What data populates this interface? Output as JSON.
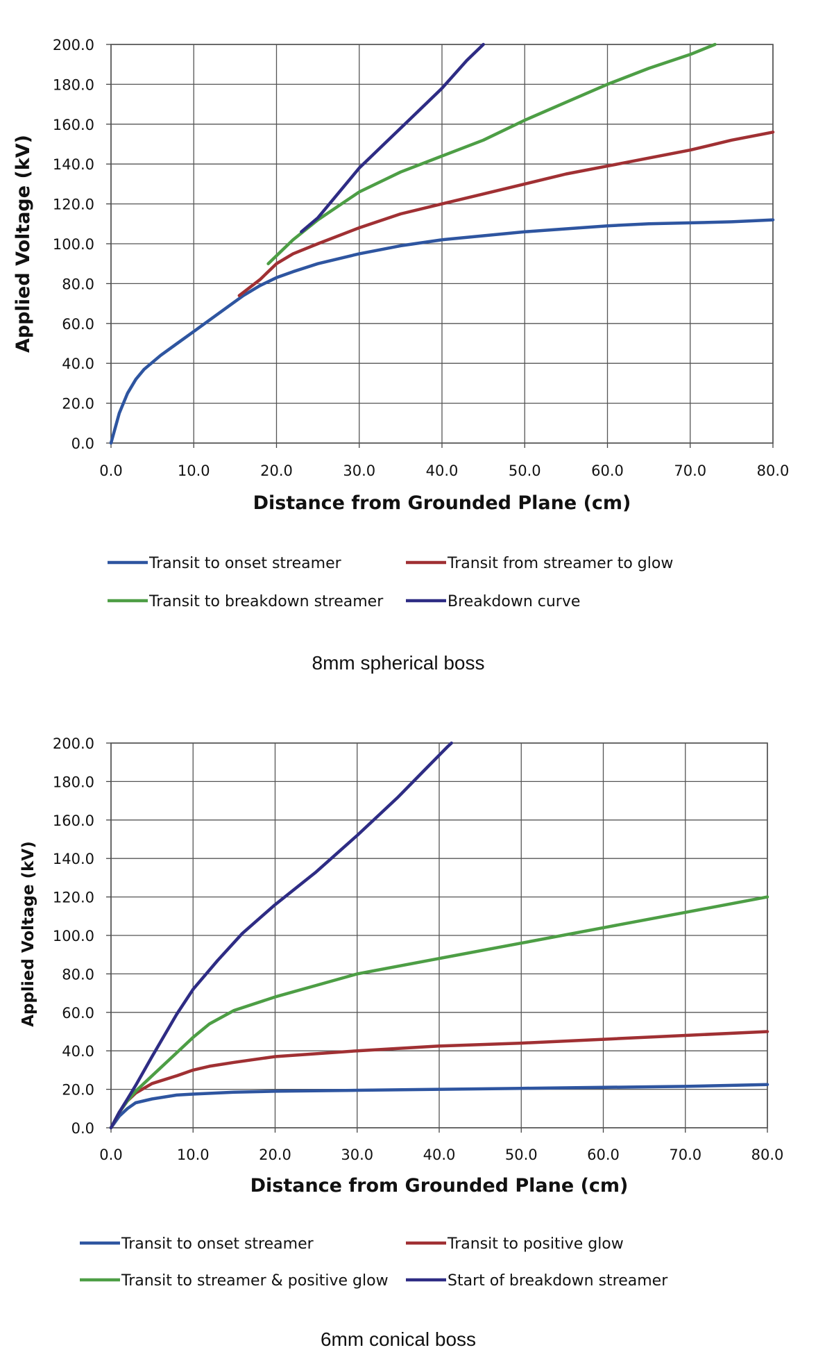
{
  "chart_data": [
    {
      "type": "line",
      "caption": "8mm spherical boss",
      "xlabel": "Distance from Grounded Plane (cm)",
      "ylabel": "Applied Voltage (kV)",
      "xlim": [
        0,
        80
      ],
      "ylim": [
        0,
        200
      ],
      "x_ticks": [
        "0.0",
        "10.0",
        "20.0",
        "30.0",
        "40.0",
        "50.0",
        "60.0",
        "70.0",
        "80.0"
      ],
      "y_ticks": [
        "0.0",
        "20.0",
        "40.0",
        "60.0",
        "80.0",
        "100.0",
        "120.0",
        "140.0",
        "160.0",
        "180.0",
        "200.0"
      ],
      "grid": true,
      "legend_position": "bottom",
      "series": [
        {
          "name": "Transit to onset streamer",
          "color": "#2e55a0",
          "points": [
            [
              0,
              0
            ],
            [
              1,
              15
            ],
            [
              2,
              25
            ],
            [
              3,
              32
            ],
            [
              4,
              37
            ],
            [
              6,
              44
            ],
            [
              8,
              50
            ],
            [
              10,
              56
            ],
            [
              12,
              62
            ],
            [
              14,
              68
            ],
            [
              16,
              74
            ],
            [
              18,
              79
            ],
            [
              20,
              83
            ],
            [
              22,
              86
            ],
            [
              25,
              90
            ],
            [
              30,
              95
            ],
            [
              35,
              99
            ],
            [
              40,
              102
            ],
            [
              45,
              104
            ],
            [
              50,
              106
            ],
            [
              55,
              107.5
            ],
            [
              60,
              109
            ],
            [
              65,
              110
            ],
            [
              70,
              110.5
            ],
            [
              75,
              111
            ],
            [
              80,
              112
            ]
          ]
        },
        {
          "name": "Transit from streamer to glow",
          "color": "#a03033",
          "points": [
            [
              15.5,
              74
            ],
            [
              18,
              82
            ],
            [
              20,
              90
            ],
            [
              22,
              95
            ],
            [
              25,
              100
            ],
            [
              30,
              108
            ],
            [
              35,
              115
            ],
            [
              40,
              120
            ],
            [
              45,
              125
            ],
            [
              50,
              130
            ],
            [
              55,
              135
            ],
            [
              60,
              139
            ],
            [
              65,
              143
            ],
            [
              70,
              147
            ],
            [
              75,
              152
            ],
            [
              80,
              156
            ]
          ]
        },
        {
          "name": "Transit to breakdown streamer",
          "color": "#4d9e45",
          "points": [
            [
              19,
              90
            ],
            [
              20,
              94
            ],
            [
              22,
              102
            ],
            [
              25,
              112
            ],
            [
              30,
              126
            ],
            [
              35,
              136
            ],
            [
              40,
              144
            ],
            [
              45,
              152
            ],
            [
              50,
              162
            ],
            [
              55,
              171
            ],
            [
              60,
              180
            ],
            [
              65,
              188
            ],
            [
              70,
              195
            ],
            [
              73,
              200
            ]
          ]
        },
        {
          "name": "Breakdown curve",
          "color": "#2e2c84",
          "points": [
            [
              23,
              106
            ],
            [
              25,
              113
            ],
            [
              30,
              138
            ],
            [
              33,
              150
            ],
            [
              36,
              162
            ],
            [
              40,
              178
            ],
            [
              43,
              192
            ],
            [
              45,
              200
            ]
          ]
        }
      ]
    },
    {
      "type": "line",
      "caption": "6mm conical boss",
      "xlabel": "Distance from Grounded Plane (cm)",
      "ylabel": "Applied Voltage (kV)",
      "xlim": [
        0,
        80
      ],
      "ylim": [
        0,
        200
      ],
      "x_ticks": [
        "0.0",
        "10.0",
        "20.0",
        "30.0",
        "40.0",
        "50.0",
        "60.0",
        "70.0",
        "80.0"
      ],
      "y_ticks": [
        "0.0",
        "20.0",
        "40.0",
        "60.0",
        "80.0",
        "100.0",
        "120.0",
        "140.0",
        "160.0",
        "180.0",
        "200.0"
      ],
      "grid": true,
      "legend_position": "bottom",
      "series": [
        {
          "name": "Transit to onset streamer",
          "color": "#2e55a0",
          "points": [
            [
              0,
              0
            ],
            [
              1,
              6
            ],
            [
              2,
              10
            ],
            [
              3,
              13
            ],
            [
              5,
              15
            ],
            [
              8,
              17
            ],
            [
              10,
              17.5
            ],
            [
              15,
              18.5
            ],
            [
              20,
              19
            ],
            [
              30,
              19.5
            ],
            [
              40,
              20
            ],
            [
              50,
              20.5
            ],
            [
              60,
              21
            ],
            [
              70,
              21.5
            ],
            [
              80,
              22.5
            ]
          ]
        },
        {
          "name": "Transit to positive glow",
          "color": "#a03033",
          "points": [
            [
              0,
              0
            ],
            [
              1,
              8
            ],
            [
              2,
              14
            ],
            [
              3,
              18
            ],
            [
              5,
              23
            ],
            [
              8,
              27
            ],
            [
              10,
              30
            ],
            [
              12,
              32
            ],
            [
              15,
              34
            ],
            [
              20,
              37
            ],
            [
              30,
              40
            ],
            [
              40,
              42.5
            ],
            [
              50,
              44
            ],
            [
              60,
              46
            ],
            [
              70,
              48
            ],
            [
              80,
              50
            ]
          ]
        },
        {
          "name": "Transit to streamer & positive glow",
          "color": "#4d9e45",
          "points": [
            [
              0,
              0
            ],
            [
              1,
              8
            ],
            [
              2,
              14
            ],
            [
              3,
              19
            ],
            [
              5,
              27
            ],
            [
              8,
              39
            ],
            [
              10,
              47
            ],
            [
              12,
              54
            ],
            [
              15,
              61
            ],
            [
              20,
              68
            ],
            [
              25,
              74
            ],
            [
              30,
              80
            ],
            [
              40,
              88
            ],
            [
              50,
              96
            ],
            [
              60,
              104
            ],
            [
              70,
              112
            ],
            [
              80,
              120
            ]
          ]
        },
        {
          "name": "Start of breakdown streamer",
          "color": "#2e2c84",
          "points": [
            [
              0,
              0
            ],
            [
              1,
              8
            ],
            [
              2,
              15
            ],
            [
              3,
              22
            ],
            [
              5,
              37
            ],
            [
              8,
              59
            ],
            [
              10,
              72
            ],
            [
              13,
              87
            ],
            [
              16,
              101
            ],
            [
              20,
              116
            ],
            [
              25,
              133
            ],
            [
              30,
              152
            ],
            [
              35,
              172
            ],
            [
              38,
              185
            ],
            [
              41,
              198
            ],
            [
              41.5,
              200
            ]
          ]
        }
      ]
    }
  ]
}
